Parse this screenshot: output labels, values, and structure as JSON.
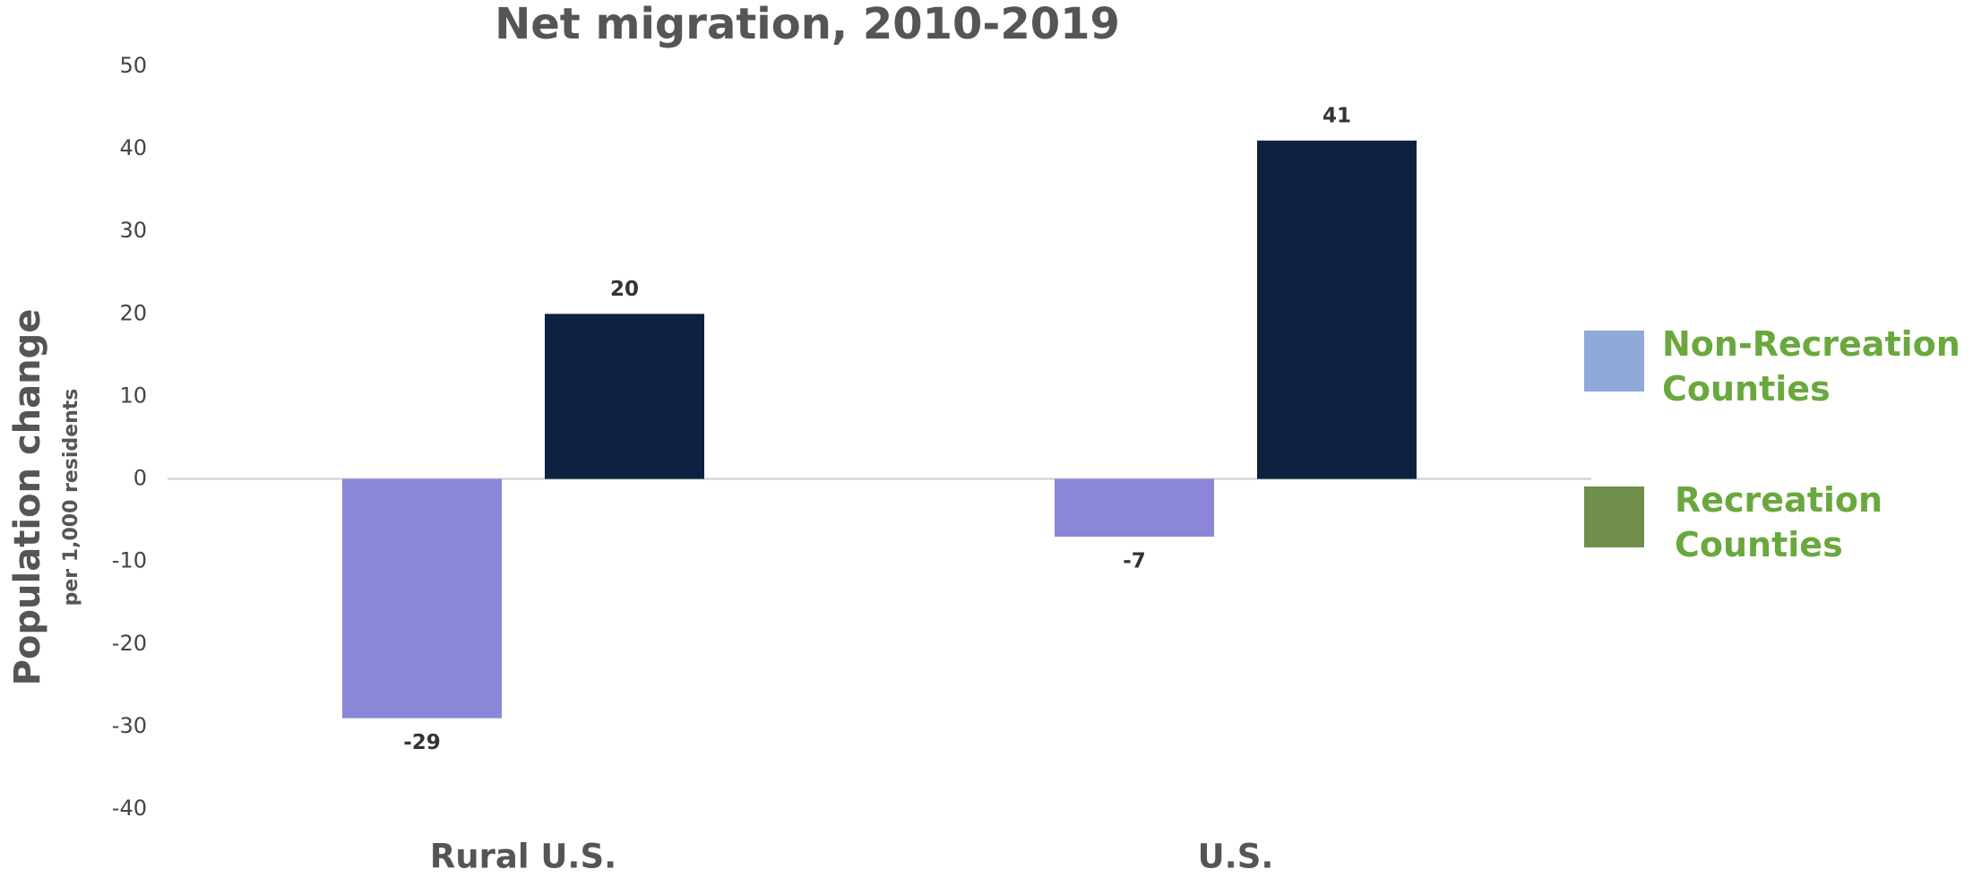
{
  "chart_data": {
    "type": "bar",
    "title": "Net migration, 2010-2019",
    "y_label": "Population change",
    "y_sublabel": "per 1,000 residents",
    "categories": [
      "Rural U.S.",
      "U.S."
    ],
    "series": [
      {
        "name": "Non-Recreation Counties",
        "color": "#8b86d8",
        "legend_color": "#8fa9d9",
        "values": [
          -29,
          -7
        ]
      },
      {
        "name": "Recreation Counties",
        "color": "#0d2240",
        "legend_color": "#6f8f4a",
        "values": [
          20,
          41
        ]
      }
    ],
    "ylim": [
      -40,
      50
    ],
    "yticks": [
      -40,
      -30,
      -20,
      -10,
      0,
      10,
      20,
      30,
      40,
      50
    ],
    "grid": false,
    "legend": "right"
  }
}
